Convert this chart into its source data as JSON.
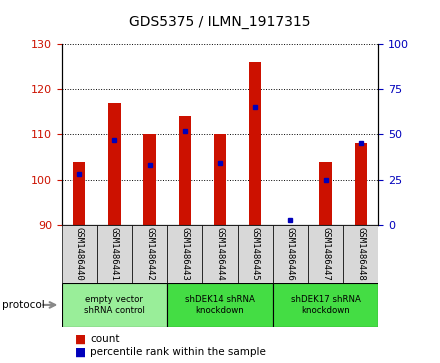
{
  "title": "GDS5375 / ILMN_1917315",
  "samples": [
    "GSM1486440",
    "GSM1486441",
    "GSM1486442",
    "GSM1486443",
    "GSM1486444",
    "GSM1486445",
    "GSM1486446",
    "GSM1486447",
    "GSM1486448"
  ],
  "counts": [
    104,
    117,
    110,
    114,
    110,
    126,
    90,
    104,
    108
  ],
  "percentiles": [
    28,
    47,
    33,
    52,
    34,
    65,
    3,
    25,
    45
  ],
  "ylim_left": [
    90,
    130
  ],
  "ylim_right": [
    0,
    100
  ],
  "yticks_left": [
    90,
    100,
    110,
    120,
    130
  ],
  "yticks_right": [
    0,
    25,
    50,
    75,
    100
  ],
  "bar_bottom": 90,
  "bar_color": "#cc1100",
  "percentile_color": "#0000bb",
  "bg_color": "#ffffff",
  "plot_bg": "#ffffff",
  "sample_box_color": "#d8d8d8",
  "groups": [
    {
      "label": "empty vector\nshRNA control",
      "start": 0,
      "end": 3,
      "color": "#99ee99"
    },
    {
      "label": "shDEK14 shRNA\nknockdown",
      "start": 3,
      "end": 6,
      "color": "#44dd44"
    },
    {
      "label": "shDEK17 shRNA\nknockdown",
      "start": 6,
      "end": 9,
      "color": "#44dd44"
    }
  ],
  "legend_count_label": "count",
  "legend_pct_label": "percentile rank within the sample",
  "protocol_label": "protocol",
  "tick_label_color_left": "#cc1100",
  "tick_label_color_right": "#0000bb",
  "bar_width": 0.35
}
